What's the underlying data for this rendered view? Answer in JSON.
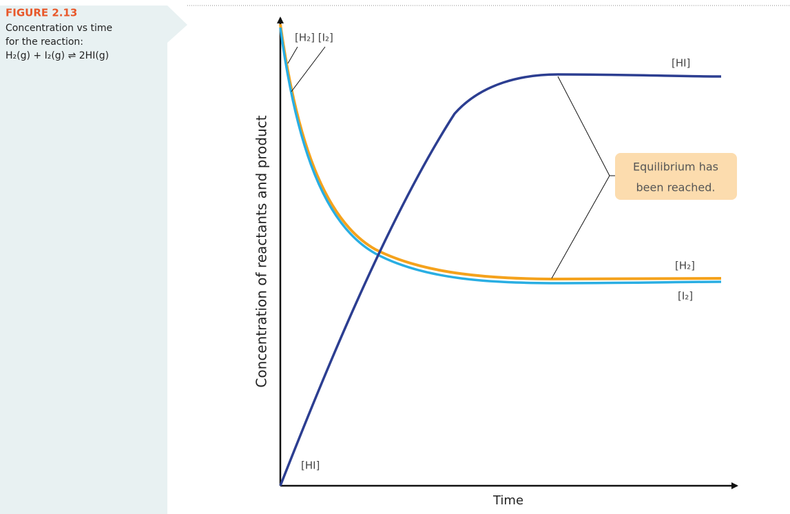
{
  "figure": {
    "label": "FIGURE 2.13",
    "caption": [
      "Concentration vs time",
      "for the reaction:",
      "H₂(g) + I₂(g) ⇌ 2HI(g)"
    ]
  },
  "chart": {
    "y_axis_label": "Concentration of reactants and product",
    "x_axis_label": "Time",
    "start_labels": {
      "reactants": "[H₂] [I₂]",
      "product": "[HI]"
    },
    "end_labels": {
      "product": "[HI]",
      "h2": "[H₂]",
      "i2": "[I₂]"
    },
    "annotation": [
      "Equilibrium has",
      "been reached."
    ]
  }
}
